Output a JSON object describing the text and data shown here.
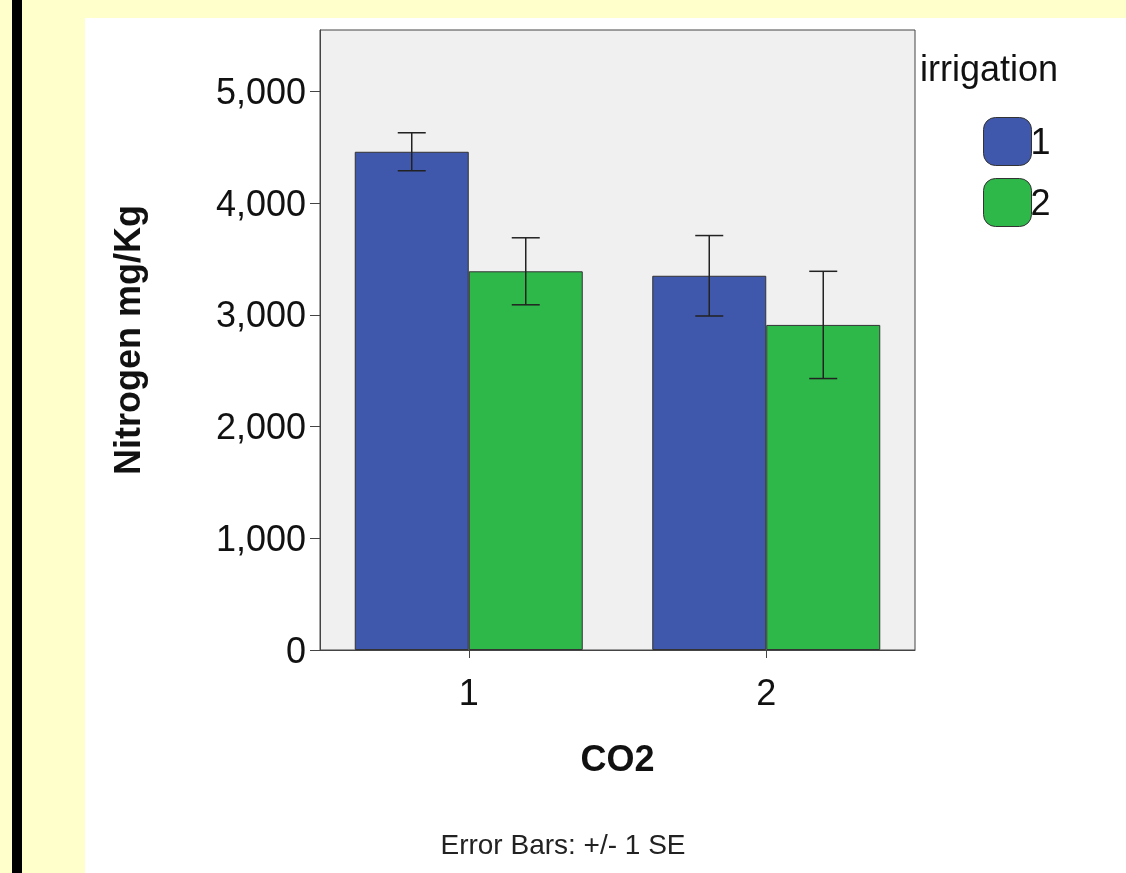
{
  "chart_data": {
    "type": "bar",
    "xlabel": "CO2",
    "ylabel": "Nitrogen mg/Kg",
    "legend_title": "irrigation",
    "categories": [
      "1",
      "2"
    ],
    "series": [
      {
        "name": "1",
        "color": "#3f58ab",
        "values": [
          4460,
          3350
        ],
        "errors": [
          170,
          360
        ]
      },
      {
        "name": "2",
        "color": "#2fb84a",
        "values": [
          3390,
          2910
        ],
        "errors": [
          300,
          480
        ]
      }
    ],
    "ylim": [
      0,
      5550
    ],
    "yticks": [
      0,
      {
        "value": 1000,
        "label": "1,000"
      },
      {
        "value": 2000,
        "label": "2,000"
      },
      {
        "value": 3000,
        "label": "3,000"
      },
      {
        "value": 4000,
        "label": "4,000"
      },
      {
        "value": 5000,
        "label": "5,000"
      }
    ],
    "grid": false,
    "legend": "top right",
    "annotations": [
      "Error Bars: +/- 1 SE"
    ]
  }
}
